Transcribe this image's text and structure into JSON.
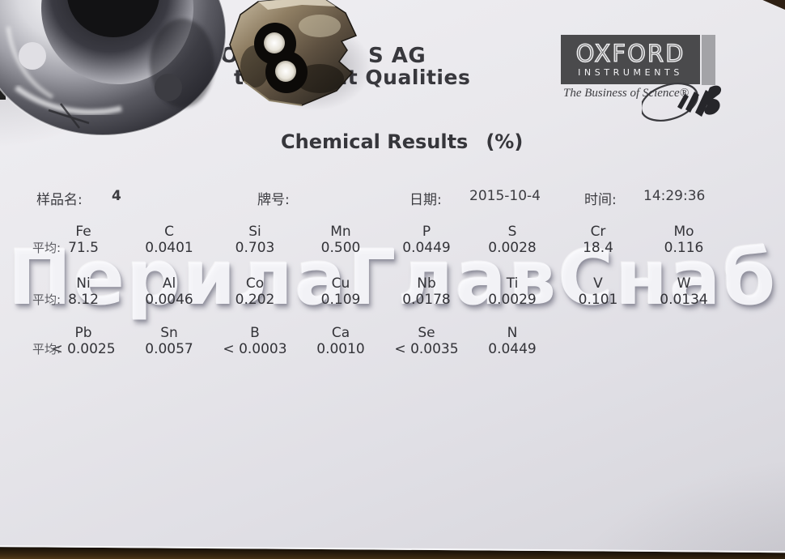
{
  "letterhead": {
    "line1_fragment_left": "WORL",
    "line1_fragment_right": "S AG",
    "line2_fragment_a": "e",
    "line2_fragment_b": "ting",
    "line2_fragment_c": "ent Qualities",
    "logo": {
      "name": "OXFORD",
      "subname": "INSTRUMENTS",
      "tagline": "The Business of Science®"
    }
  },
  "title": {
    "main": "Chemical Results",
    "unit": "(%)"
  },
  "sample_info": {
    "name_label": "样品名:",
    "name_value": "4",
    "grade_label": "牌号:",
    "grade_value": "",
    "date_label": "日期:",
    "date_value": "2015-10-4",
    "time_label": "时间:",
    "time_value": "14:29:36"
  },
  "results": {
    "avg_label": "平均:",
    "rows": [
      {
        "cells": [
          {
            "el": "Fe",
            "val": "71.5"
          },
          {
            "el": "C",
            "val": "0.0401"
          },
          {
            "el": "Si",
            "val": "0.703"
          },
          {
            "el": "Mn",
            "val": "0.500"
          },
          {
            "el": "P",
            "val": "0.0449"
          },
          {
            "el": "S",
            "val": "0.0028"
          },
          {
            "el": "Cr",
            "val": "18.4"
          },
          {
            "el": "Mo",
            "val": "0.116"
          }
        ]
      },
      {
        "cells": [
          {
            "el": "Ni",
            "val": "8.12"
          },
          {
            "el": "Al",
            "val": "0.0046"
          },
          {
            "el": "Co",
            "val": "0.202"
          },
          {
            "el": "Cu",
            "val": "0.109"
          },
          {
            "el": "Nb",
            "val": "0.0178"
          },
          {
            "el": "Ti",
            "val": "0.0029"
          },
          {
            "el": "V",
            "val": "0.101"
          },
          {
            "el": "W",
            "val": "0.0134"
          }
        ]
      },
      {
        "cells": [
          {
            "el": "Pb",
            "val": "< 0.0025"
          },
          {
            "el": "Sn",
            "val": "0.0057"
          },
          {
            "el": "B",
            "val": "< 0.0003"
          },
          {
            "el": "Ca",
            "val": "0.0010"
          },
          {
            "el": "Se",
            "val": "< 0.0035"
          },
          {
            "el": "N",
            "val": "0.0449"
          }
        ]
      }
    ]
  },
  "watermark": "ПерилаГлавСнаб",
  "colors": {
    "paper": "#e9e8ec",
    "ink": "#38383d",
    "logo_box": "#4a4a4c",
    "logo_bar": "#a3a3a7",
    "watermark": "#fafafd",
    "wood": "#6a4a20"
  }
}
